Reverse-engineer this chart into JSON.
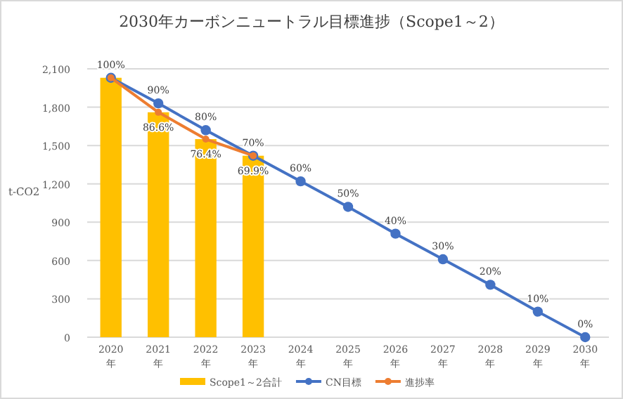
{
  "chart_data": {
    "type": "bar",
    "title": "2030年カーボンニュートラル目標進捗（Scope1～2）",
    "ylabel": "t-CO2",
    "categories": [
      "2020年",
      "2021年",
      "2022年",
      "2023年",
      "2024年",
      "2025年",
      "2026年",
      "2027年",
      "2028年",
      "2029年",
      "2030年"
    ],
    "series": [
      {
        "name": "Scope1～2合計",
        "color": "#ffc000",
        "values": [
          2030,
          1760,
          1550,
          1420,
          null,
          null,
          null,
          null,
          null,
          null,
          null
        ]
      },
      {
        "name": "CN目標",
        "type": "line",
        "color": "#4472c4",
        "values": [
          2030,
          1830,
          1620,
          1420,
          1220,
          1020,
          810,
          610,
          410,
          200,
          0
        ]
      },
      {
        "name": "進捗率",
        "type": "line",
        "color": "#ed7d31",
        "values": [
          2030,
          1760,
          1550,
          1420,
          null,
          null,
          null,
          null,
          null,
          null,
          null
        ]
      }
    ],
    "annotations": [
      {
        "text": "100%",
        "x": "2020年",
        "y": 2030
      },
      {
        "text": "90%",
        "x": "2021年",
        "y": 1830
      },
      {
        "text": "80%",
        "x": "2022年",
        "y": 1620
      },
      {
        "text": "70%",
        "x": "2023年",
        "y": 1420
      },
      {
        "text": "60%",
        "x": "2024年",
        "y": 1220
      },
      {
        "text": "50%",
        "x": "2025年",
        "y": 1020
      },
      {
        "text": "40%",
        "x": "2026年",
        "y": 810
      },
      {
        "text": "30%",
        "x": "2027年",
        "y": 610
      },
      {
        "text": "20%",
        "x": "2028年",
        "y": 410
      },
      {
        "text": "10%",
        "x": "2029年",
        "y": 200
      },
      {
        "text": "0%",
        "x": "2030年",
        "y": 0
      },
      {
        "text": "86.6%",
        "x": "2021年",
        "y": 1760
      },
      {
        "text": "76.4%",
        "x": "2022年",
        "y": 1550
      },
      {
        "text": "69.9%",
        "x": "2023年",
        "y": 1419
      }
    ],
    "ylim": [
      0,
      2100
    ],
    "yticks": [
      0,
      300,
      600,
      900,
      {
        "value": 1200,
        "label": "1,200"
      },
      {
        "value": 1500,
        "label": "1,500"
      },
      {
        "value": 1800,
        "label": "1,800"
      },
      {
        "value": 2100,
        "label": "2,100"
      }
    ],
    "grid": "y",
    "legend": "bottom",
    "marker": "circle"
  }
}
